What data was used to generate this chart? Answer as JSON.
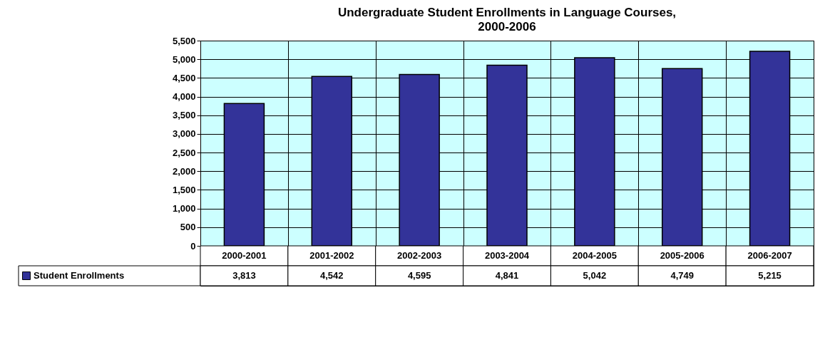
{
  "chart_data": {
    "type": "bar",
    "title": "Undergraduate Student Enrollments in Language Courses, 2000-2006",
    "categories": [
      "2000-2001",
      "2001-2002",
      "2002-2003",
      "2003-2004",
      "2004-2005",
      "2005-2006",
      "2006-2007"
    ],
    "series": [
      {
        "name": "Student Enrollments",
        "color": "#333399",
        "values": [
          3813,
          4542,
          4595,
          4841,
          5042,
          4749,
          5215
        ],
        "value_labels": [
          "3,813",
          "4,542",
          "4,595",
          "4,841",
          "5,042",
          "4,749",
          "5,215"
        ]
      }
    ],
    "ylim": [
      0,
      5500
    ],
    "yticks": [
      0,
      500,
      {
        "value": 1000,
        "label": "1,000"
      },
      {
        "value": 1500,
        "label": "1,500"
      },
      {
        "value": 2000,
        "label": "2,000"
      },
      {
        "value": 2500,
        "label": "2,500"
      },
      {
        "value": 3000,
        "label": "3,000"
      },
      {
        "value": 3500,
        "label": "3,500"
      },
      {
        "value": 4000,
        "label": "4,000"
      },
      {
        "value": 4500,
        "label": "4,500"
      },
      {
        "value": 5000,
        "label": "5,000"
      },
      {
        "value": 5500,
        "label": "5,500"
      }
    ],
    "grid": true,
    "legend": "bottom left"
  }
}
